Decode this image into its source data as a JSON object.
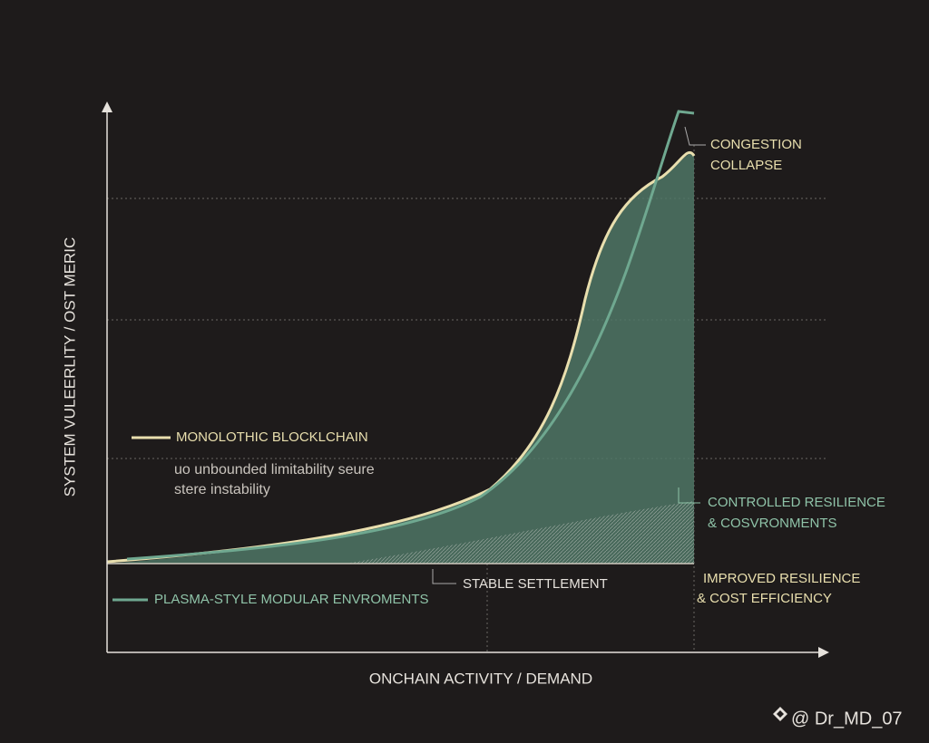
{
  "axes": {
    "y_label": "SYSTEM VULEERLITY / OST MERIC",
    "x_label": "ONCHAIN ACTIVITY / DEMAND"
  },
  "annotations": {
    "congestion": [
      "CONGESTION",
      "COLLAPSE"
    ],
    "monolithic": "MONOLOTHIC BLOCKLCHAIN",
    "monolithic_note": [
      "uo unbounded limitability seure",
      "stere instability"
    ],
    "controlled": [
      "CONTROLLED RESILIENCE",
      "& COSVRONMENTS"
    ],
    "stable": "STABLE SETTLEMENT",
    "improved": [
      "IMPROVED RESILIENCE",
      "& COST EFFICIENCY"
    ],
    "plasma": "PLASMA-STYLE MODULAR ENVROMENTS"
  },
  "watermark": "@ Dr_MD_07"
}
